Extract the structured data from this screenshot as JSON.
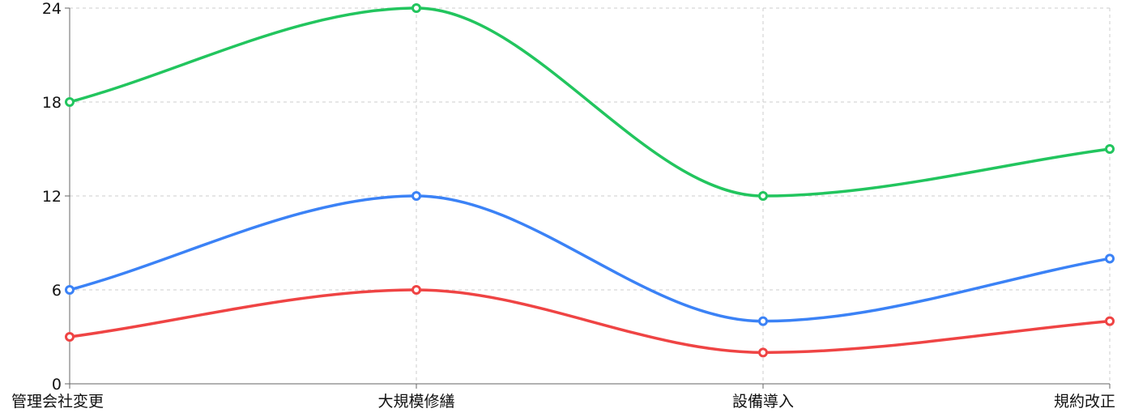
{
  "chart_data": {
    "type": "line",
    "curve": "smooth",
    "categories": [
      "管理会社変更",
      "大規模修繕",
      "設備導入",
      "規約改正"
    ],
    "ylim": [
      0,
      24
    ],
    "yticks": [
      0,
      6,
      12,
      18,
      24
    ],
    "grid": true,
    "series": [
      {
        "color": "#22c55e",
        "values": [
          18,
          24,
          12,
          15
        ]
      },
      {
        "color": "#3b82f6",
        "values": [
          6,
          12,
          4,
          8
        ]
      },
      {
        "color": "#ef4444",
        "values": [
          3,
          6,
          2,
          4
        ]
      }
    ]
  }
}
